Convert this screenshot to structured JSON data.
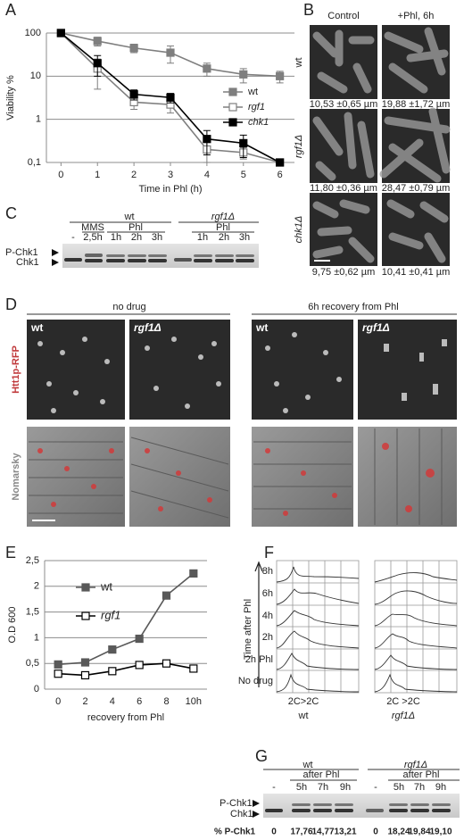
{
  "panel_labels": [
    "A",
    "B",
    "C",
    "D",
    "E",
    "F",
    "G"
  ],
  "chart_data": [
    {
      "type": "line",
      "y_label": "Viability %",
      "x_label": "Time in Phl (h)",
      "yscale": "log",
      "grid": true,
      "legend": "right",
      "x": [
        0,
        1,
        2,
        3,
        4,
        5,
        6
      ],
      "xlim": [
        -0.4,
        6.4
      ],
      "xticks": [
        0,
        1,
        2,
        3,
        4,
        5,
        6
      ],
      "ylim": [
        0.1,
        100
      ],
      "yticks": [
        100,
        10,
        1,
        {
          "value": 0.1,
          "label": "0,1"
        }
      ],
      "series": [
        {
          "name": "wt",
          "color": "#7f7f7f",
          "marker_fill": "#7f7f7f",
          "values": [
            100,
            65,
            45,
            35,
            15,
            11,
            10
          ],
          "errors": [
            0,
            15,
            10,
            15,
            5,
            4,
            3
          ]
        },
        {
          "name": "rgf1",
          "color": "#7f7f7f",
          "marker_fill": "#ffffff",
          "values": [
            100,
            15,
            2.5,
            2.2,
            0.2,
            0.17,
            0.1
          ],
          "errors": [
            0,
            10,
            0.8,
            0.8,
            0.1,
            0.05,
            0
          ]
        },
        {
          "name": "chk1",
          "color": "#000000",
          "marker_fill": "#000000",
          "values": [
            100,
            20,
            3.8,
            3.2,
            0.35,
            0.28,
            0.1
          ],
          "errors": [
            0,
            10,
            1,
            0.8,
            0.2,
            0.15,
            0
          ]
        }
      ]
    },
    {
      "type": "line",
      "y_label": "O.D 600",
      "x_label": "recovery from Phl",
      "grid": true,
      "legend": "top-left",
      "categories": [
        "0",
        "2",
        "4",
        "6",
        "8",
        "10h"
      ],
      "ylim": [
        0,
        2.5
      ],
      "yticks": [
        0,
        {
          "value": 0.5,
          "label": "0,5"
        },
        1,
        {
          "value": 1.5,
          "label": "1,5"
        },
        2,
        {
          "value": 2.5,
          "label": "2,5"
        }
      ],
      "series": [
        {
          "name": "wt",
          "color": "#595959",
          "marker_fill": "#595959",
          "values": [
            0.48,
            0.52,
            0.77,
            0.98,
            1.82,
            2.25
          ]
        },
        {
          "name": "rgf1",
          "color": "#000000",
          "marker_fill": "#ffffff",
          "values": [
            0.3,
            0.27,
            0.35,
            0.47,
            0.5,
            0.4
          ]
        }
      ]
    }
  ],
  "panel_b": {
    "columns": [
      "Control",
      "+Phl, 6h"
    ],
    "rows": [
      "wt",
      "rgf1Δ",
      "chk1Δ"
    ],
    "measurements": [
      [
        "10,53 ±0,65 µm",
        "19,88 ±1,72 µm"
      ],
      [
        "11,80 ±0,36 µm",
        "28,47 ±0,79 µm"
      ],
      [
        "9,75 ±0,62 µm",
        "10,41 ±0,41 µm"
      ]
    ]
  },
  "panel_c": {
    "groups": [
      "wt",
      "rgf1Δ"
    ],
    "treatments": [
      "MMS",
      "Phl",
      "Phl"
    ],
    "lanes": [
      "-",
      "2,5h",
      "1h",
      "2h",
      "3h",
      "1h",
      "2h",
      "3h"
    ],
    "bands": [
      "P-Chk1",
      "Chk1"
    ]
  },
  "panel_d": {
    "conditions": [
      "no drug",
      "6h recovery from Phl"
    ],
    "strains": [
      "wt",
      "rgf1Δ",
      "wt",
      "rgf1Δ"
    ],
    "rows": [
      "Htt1p-RFP",
      "Nomarsky"
    ]
  },
  "panel_f": {
    "axis_label": "Time after Phl",
    "rows": [
      "8h",
      "6h",
      "4h",
      "2h",
      "2h Phl",
      "No drug"
    ],
    "x_labels": [
      "2C>2C",
      "2C >2C"
    ],
    "strains": [
      "wt",
      "rgf1Δ"
    ]
  },
  "panel_g": {
    "groups": [
      "wt",
      "rgf1Δ"
    ],
    "treatments": [
      "after Phl",
      "after Phl"
    ],
    "lanes": [
      "-",
      "5h",
      "7h",
      "9h",
      "-",
      "5h",
      "7h",
      "9h"
    ],
    "bands": [
      "P-Chk1",
      "Chk1"
    ],
    "row_label": "% P-Chk1",
    "percentages": [
      "0",
      "17,76",
      "14,77",
      "13,21",
      "0",
      "18,24",
      "19,84",
      "19,10"
    ]
  }
}
